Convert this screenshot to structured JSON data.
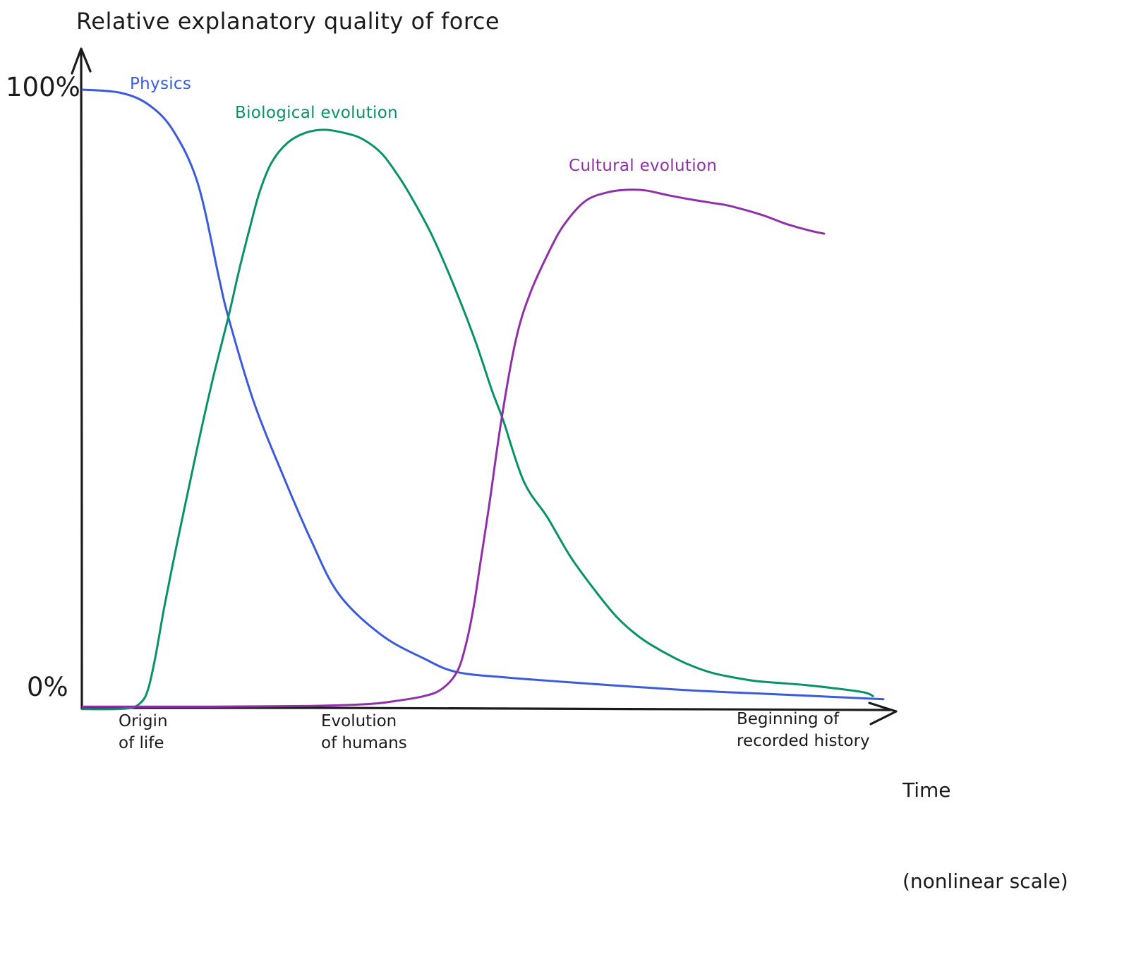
{
  "colors": {
    "axis": "#1b1b1e",
    "text": "#1b1b1e",
    "background": "#ffffff"
  },
  "chart_data": {
    "type": "line",
    "title": "Relative explanatory quality of force",
    "xlabel": {
      "line1": "Time",
      "line2": "(nonlinear scale)"
    },
    "ylabel": "Relative explanatory quality of force",
    "ylim": [
      0,
      100
    ],
    "xlim": [
      0,
      100
    ],
    "x_scale": "nonlinear time",
    "grid": false,
    "legend_position": "inline-colored-labels",
    "y_ticks": [
      {
        "label": "100%",
        "value": 100
      },
      {
        "label": "0%",
        "value": 0
      }
    ],
    "x_annotations": [
      {
        "line1": "Origin",
        "line2": "of life",
        "x": 7
      },
      {
        "line1": "Evolution",
        "line2": "of humans",
        "x": 33
      },
      {
        "line1": "Beginning of",
        "line2": "recorded history",
        "x": 87
      }
    ],
    "series": [
      {
        "name": "Physics",
        "color": "#3b5bdb",
        "points": [
          [
            0,
            100
          ],
          [
            4.7,
            99.5
          ],
          [
            8.2,
            97.6
          ],
          [
            11.3,
            93.4
          ],
          [
            14.4,
            84.8
          ],
          [
            17.0,
            69.8
          ],
          [
            18.2,
            63.2
          ],
          [
            21.4,
            49.4
          ],
          [
            24.9,
            38.0
          ],
          [
            28.5,
            27.2
          ],
          [
            32.0,
            18.4
          ],
          [
            37.3,
            11.8
          ],
          [
            42.6,
            8.0
          ],
          [
            46.7,
            5.8
          ],
          [
            53.1,
            4.9
          ],
          [
            60.2,
            4.2
          ],
          [
            69.0,
            3.4
          ],
          [
            77.8,
            2.7
          ],
          [
            86.6,
            2.2
          ],
          [
            100,
            1.4
          ]
        ]
      },
      {
        "name": "Biological evolution",
        "color": "#099268",
        "points": [
          [
            0,
            -0.2
          ],
          [
            5.5,
            -0.1
          ],
          [
            7.3,
            0.9
          ],
          [
            8.2,
            3.1
          ],
          [
            9.1,
            8.3
          ],
          [
            10.2,
            16.3
          ],
          [
            11.7,
            26.0
          ],
          [
            13.2,
            35.2
          ],
          [
            14.7,
            44.3
          ],
          [
            16.3,
            53.4
          ],
          [
            18.2,
            63.2
          ],
          [
            19.6,
            71.1
          ],
          [
            20.9,
            77.7
          ],
          [
            22.1,
            83.4
          ],
          [
            23.6,
            88.2
          ],
          [
            25.6,
            91.4
          ],
          [
            27.8,
            93.0
          ],
          [
            30.2,
            93.5
          ],
          [
            33.0,
            92.9
          ],
          [
            35.1,
            91.9
          ],
          [
            37.4,
            89.6
          ],
          [
            39.5,
            85.9
          ],
          [
            41.2,
            82.3
          ],
          [
            43.6,
            76.5
          ],
          [
            46.3,
            68.5
          ],
          [
            49.0,
            59.5
          ],
          [
            51.1,
            51.4
          ],
          [
            52.5,
            46.6
          ],
          [
            55.1,
            36.6
          ],
          [
            58.0,
            30.9
          ],
          [
            60.9,
            24.5
          ],
          [
            63.8,
            19.3
          ],
          [
            66.7,
            14.7
          ],
          [
            69.7,
            11.3
          ],
          [
            72.6,
            9.0
          ],
          [
            75.5,
            7.1
          ],
          [
            78.5,
            5.7
          ],
          [
            81.4,
            4.9
          ],
          [
            84.3,
            4.3
          ],
          [
            87.3,
            4.0
          ],
          [
            90.2,
            3.7
          ],
          [
            93.7,
            3.2
          ],
          [
            97.6,
            2.5
          ],
          [
            98.7,
            1.9
          ]
        ]
      },
      {
        "name": "Cultural evolution",
        "color": "#9030a8",
        "points": [
          [
            0,
            0.2
          ],
          [
            16.1,
            0.2
          ],
          [
            27.6,
            0.3
          ],
          [
            35.5,
            0.6
          ],
          [
            39.0,
            1.1
          ],
          [
            42.6,
            1.9
          ],
          [
            44.8,
            3.0
          ],
          [
            46.7,
            5.7
          ],
          [
            47.8,
            9.9
          ],
          [
            48.8,
            16.1
          ],
          [
            49.7,
            23.7
          ],
          [
            50.7,
            32.1
          ],
          [
            52.3,
            46.6
          ],
          [
            54.1,
            59.5
          ],
          [
            55.9,
            67.1
          ],
          [
            58.4,
            74.2
          ],
          [
            60.2,
            78.3
          ],
          [
            62.8,
            82.0
          ],
          [
            65.6,
            83.4
          ],
          [
            68.1,
            83.8
          ],
          [
            70.3,
            83.7
          ],
          [
            73.2,
            82.9
          ],
          [
            76.1,
            82.2
          ],
          [
            79.0,
            81.6
          ],
          [
            80.8,
            81.2
          ],
          [
            84.9,
            79.7
          ],
          [
            87.8,
            78.3
          ],
          [
            90.8,
            77.2
          ],
          [
            92.6,
            76.7
          ]
        ]
      }
    ]
  }
}
